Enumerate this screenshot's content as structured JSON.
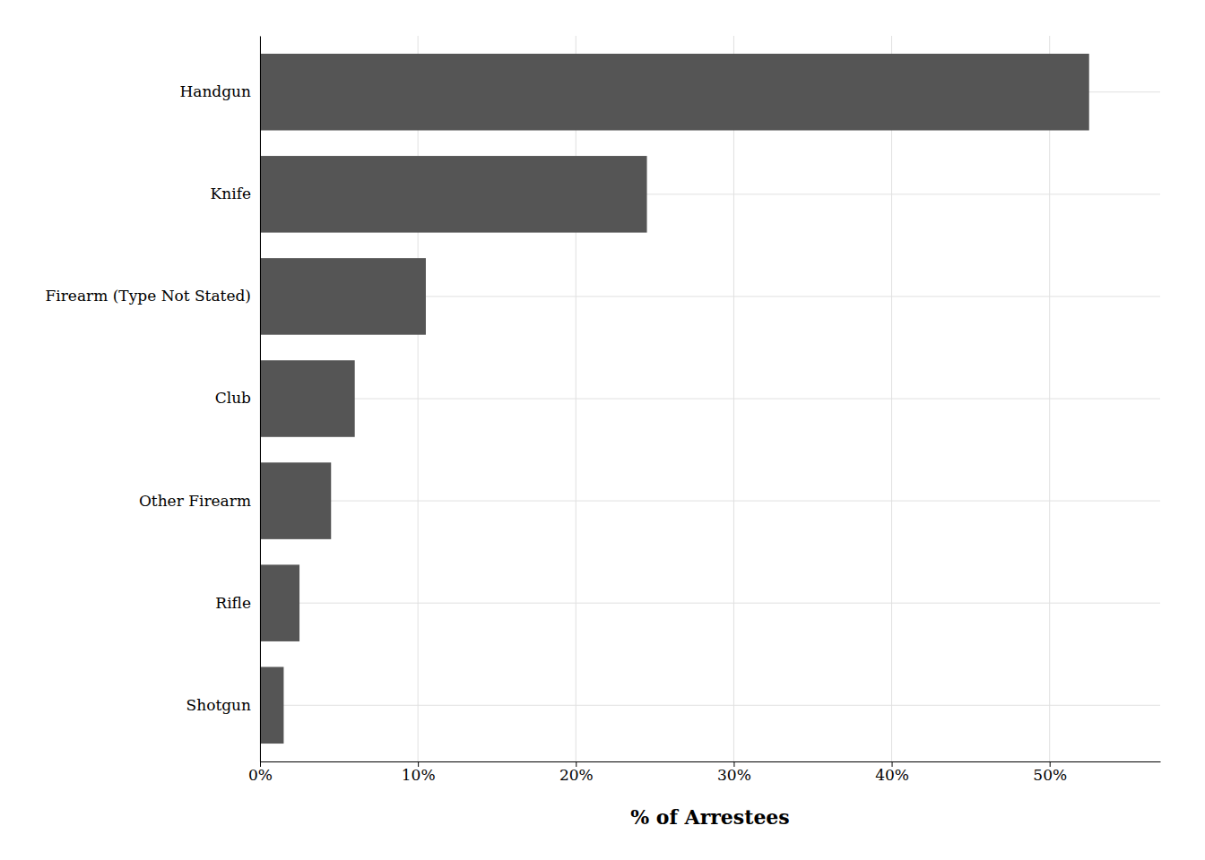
{
  "chart_data": {
    "type": "bar",
    "orientation": "horizontal",
    "categories": [
      "Handgun",
      "Knife",
      "Firearm (Type Not Stated)",
      "Club",
      "Other Firearm",
      "Rifle",
      "Shotgun"
    ],
    "values": [
      52.5,
      24.5,
      10.5,
      6.0,
      4.5,
      2.5,
      1.5
    ],
    "color": "#555555",
    "xlabel": "% of Arrestees",
    "xlim": [
      0,
      57
    ],
    "xticks": [
      {
        "value": 0,
        "label": "0%"
      },
      {
        "value": 10,
        "label": "10%"
      },
      {
        "value": 20,
        "label": "20%"
      },
      {
        "value": 30,
        "label": "30%"
      },
      {
        "value": 40,
        "label": "40%"
      },
      {
        "value": 50,
        "label": "50%"
      }
    ],
    "grid": true
  }
}
